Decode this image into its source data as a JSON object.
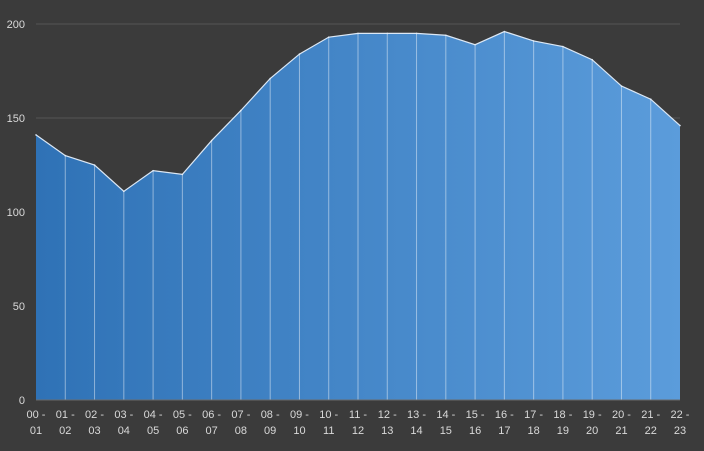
{
  "chart_data": {
    "type": "area",
    "title": "",
    "xlabel": "",
    "ylabel": "",
    "categories": [
      [
        "00 -",
        "01"
      ],
      [
        "01 -",
        "02"
      ],
      [
        "02 -",
        "03"
      ],
      [
        "03 -",
        "04"
      ],
      [
        "04 -",
        "05"
      ],
      [
        "05 -",
        "06"
      ],
      [
        "06 -",
        "07"
      ],
      [
        "07 -",
        "08"
      ],
      [
        "08 -",
        "09"
      ],
      [
        "09 -",
        "10"
      ],
      [
        "10 -",
        "11"
      ],
      [
        "11 -",
        "12"
      ],
      [
        "12 -",
        "13"
      ],
      [
        "13 -",
        "14"
      ],
      [
        "14 -",
        "15"
      ],
      [
        "15 -",
        "16"
      ],
      [
        "16 -",
        "17"
      ],
      [
        "17 -",
        "18"
      ],
      [
        "18 -",
        "19"
      ],
      [
        "19 -",
        "20"
      ],
      [
        "20 -",
        "21"
      ],
      [
        "21 -",
        "22"
      ],
      [
        "22 -",
        "23"
      ]
    ],
    "values": [
      141,
      130,
      125,
      111,
      122,
      120,
      138,
      154,
      171,
      184,
      193,
      195,
      195,
      195,
      194,
      189,
      196,
      191,
      188,
      181,
      167,
      160,
      146
    ],
    "ylim": [
      0,
      200
    ],
    "yticks": [
      0,
      50,
      100,
      150,
      200
    ],
    "grid": true,
    "legend": "none",
    "colors": {
      "background": "#3b3b3b",
      "fill_start": "#2f72b6",
      "fill_end": "#5b9cdb",
      "outline": "#dce8f5",
      "gridline": "#555555",
      "axis_text": "#d9d9d9"
    }
  }
}
